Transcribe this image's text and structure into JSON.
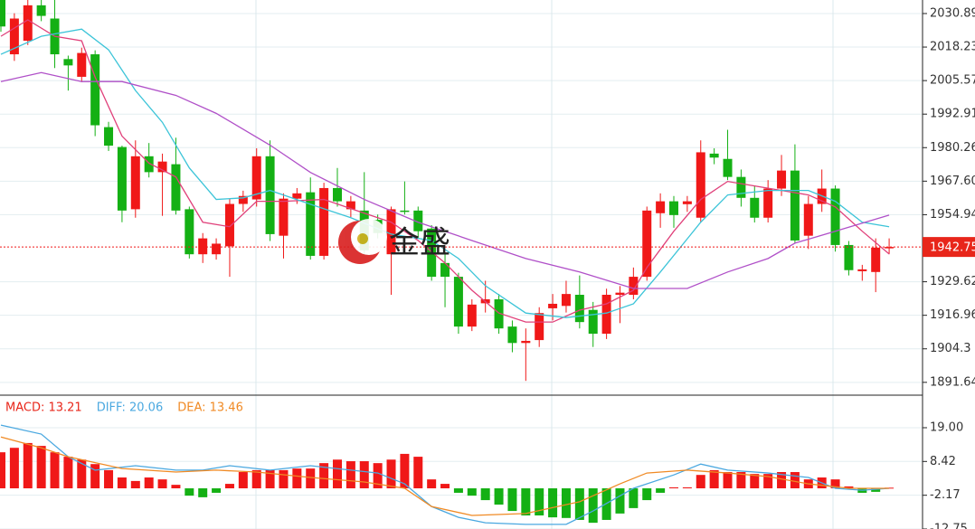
{
  "chart_data": [
    {
      "type": "candlestick",
      "up_color": "#f01818",
      "down_color": "#14b014",
      "ylim": [
        1886.8,
        2036
      ],
      "yticks": [
        2030.89,
        2018.23,
        2005.57,
        1992.91,
        1980.26,
        {
          "value": 1967.6,
          "label": "1967.60"
        },
        1954.94,
        1929.62,
        1916.96,
        1904.3,
        1891.64
      ],
      "grid": true,
      "last_price": 1942.75,
      "watermark": "金盛",
      "open": [
        2036,
        2015.5,
        2020.6,
        2034,
        2029,
        2013.7,
        2007,
        2015.5,
        1988,
        1980.5,
        1957,
        1977,
        1971,
        1974,
        1957,
        1940,
        1940,
        1943,
        1959,
        1960.7,
        1977,
        1947,
        1961,
        1963.4,
        1939.4,
        1965,
        1957,
        1956.5,
        1953,
        1940,
        1956.5,
        1956.5,
        1949.7,
        1936.7,
        1931.5,
        1912.7,
        1921.5,
        1923,
        1912.7,
        1906.5,
        1907.6,
        1919.6,
        1920.5,
        1924.7,
        1919,
        1910,
        1924.7,
        1924.7,
        1931.5,
        1955.5,
        1960,
        1958.9,
        1953.8,
        1978,
        1976,
        1969.2,
        1961.3,
        1953.8,
        1964.8,
        1971.6,
        1947,
        1959,
        1964.8,
        1943.5,
        1933.6,
        1933.3,
        1942.3
      ],
      "high": [
        2036,
        2031,
        2036,
        2036,
        2036,
        2015,
        2018,
        2017,
        1990,
        1981,
        1983,
        1982,
        1978,
        1984,
        1958,
        1948,
        1946,
        1961,
        1964,
        1980,
        1983,
        1963,
        1965,
        1969,
        1967,
        1972.6,
        1962,
        1971,
        1955,
        1958,
        1967.5,
        1958,
        1951,
        1940,
        1933,
        1923,
        1930,
        1925,
        1915,
        1912,
        1920,
        1925,
        1930,
        1932,
        1922,
        1927,
        1928,
        1935,
        1958,
        1963,
        1962,
        1962,
        1983,
        1980,
        1987,
        1972,
        1966,
        1968,
        1977.5,
        1981.5,
        1962,
        1972,
        1966,
        1945,
        1936,
        1946,
        1946
      ],
      "low": [
        2024,
        2013,
        2019,
        2028,
        2010.3,
        2001.8,
        2005,
        1984.6,
        1979,
        1952.1,
        1953.8,
        1969,
        1954.5,
        1955,
        1938.4,
        1936.7,
        1938,
        1931.5,
        1956,
        1958,
        1945,
        1938.4,
        1959,
        1938,
        1938,
        1958,
        1954,
        1940,
        1946,
        1924.7,
        1955,
        1946,
        1930,
        1920,
        1910,
        1911,
        1918,
        1910,
        1903,
        1892.2,
        1905,
        1915,
        1918,
        1912,
        1905,
        1908,
        1914,
        1923,
        1930,
        1950,
        1950,
        1956,
        1952,
        1974,
        1968,
        1958,
        1952,
        1952,
        1962,
        1944,
        1942,
        1956,
        1941,
        1932,
        1930,
        1925.7,
        1940
      ],
      "close": [
        2026,
        2029,
        2034,
        2030,
        2015.5,
        2011.3,
        2016,
        1988.7,
        1981,
        1956.5,
        1977,
        1971,
        1975,
        1956.5,
        1940,
        1946,
        1944,
        1959,
        1962,
        1977,
        1947.6,
        1961,
        1963,
        1939.4,
        1965,
        1960,
        1960,
        1941.5,
        1948,
        1957,
        1956.2,
        1948.7,
        1931.5,
        1931.5,
        1912.7,
        1921,
        1923,
        1912,
        1906.5,
        1907.3,
        1917.8,
        1921.3,
        1925,
        1914.4,
        1910,
        1924.7,
        1925.5,
        1931.5,
        1956.5,
        1960,
        1954.8,
        1960,
        1978.5,
        1976.5,
        1969.2,
        1961.3,
        1953.8,
        1964.8,
        1971.6,
        1945.2,
        1959,
        1964.8,
        1943.5,
        1934,
        1934.3,
        1942.5,
        1942.75
      ],
      "series": [
        {
          "color": "#e0407a",
          "x": [
            0,
            2,
            4,
            6,
            7,
            9,
            11,
            13,
            15,
            17,
            19,
            21,
            24,
            27,
            29,
            31,
            33,
            35,
            37,
            39,
            41,
            43,
            45,
            47,
            48,
            50,
            52,
            54,
            56,
            58,
            60,
            62,
            64,
            66
          ],
          "values": [
            2022.3,
            2028.5,
            2022.3,
            2020.6,
            2006.9,
            1984.6,
            1974.4,
            1969.2,
            1952.1,
            1950.4,
            1960,
            1960,
            1960.7,
            1955.5,
            1952.1,
            1945.2,
            1936.7,
            1926.4,
            1917.8,
            1914.4,
            1914.4,
            1918.9,
            1921.3,
            1926.4,
            1935,
            1948.7,
            1960.7,
            1967.5,
            1965.8,
            1964.1,
            1962.4,
            1957.9,
            1948.7,
            1940.1
          ]
        },
        {
          "color": "#3cc4d8",
          "x": [
            0,
            3,
            6,
            8,
            10,
            12,
            14,
            16,
            18,
            20,
            23,
            26,
            29,
            32,
            34,
            36,
            39,
            42,
            45,
            47,
            49,
            52,
            54,
            57,
            60,
            62,
            64,
            66
          ],
          "values": [
            2015.5,
            2022.3,
            2025,
            2017.2,
            2001.8,
            1989.8,
            1972.6,
            1960.7,
            1961.3,
            1964.1,
            1958.9,
            1953.8,
            1947.6,
            1945.2,
            1938.4,
            1928.1,
            1917.8,
            1916.1,
            1917.8,
            1921.3,
            1933.3,
            1952.1,
            1962.4,
            1964.1,
            1964.1,
            1960,
            1952.1,
            1950.4
          ]
        },
        {
          "color": "#b050c8",
          "x": [
            0,
            3,
            6,
            9,
            13,
            16,
            20,
            23,
            27,
            31,
            35,
            39,
            43,
            47,
            51,
            54,
            57,
            59,
            62,
            66
          ],
          "values": [
            2005.2,
            2008.6,
            2005.2,
            2005.2,
            2000,
            1993.2,
            1981.2,
            1970.9,
            1960.7,
            1952.1,
            1945.2,
            1938.4,
            1933.3,
            1927.1,
            1927.1,
            1933.3,
            1938.4,
            1944.2,
            1948.7,
            1954.8
          ]
        }
      ]
    },
    {
      "type": "macd",
      "ylim": [
        -12.75,
        29.2
      ],
      "yticks": [
        {
          "value": 19,
          "label": "19.00"
        },
        8.42,
        -2.17,
        -12.75
      ],
      "up_color": "#f01818",
      "down_color": "#14b014",
      "series": [
        {
          "name": "MACD: 13.21",
          "color": "#e8261a",
          "values": [
            11.3,
            12.7,
            14.2,
            13.3,
            11.3,
            9.9,
            9,
            7.6,
            5.7,
            3.4,
            2.3,
            3.4,
            2.8,
            1.1,
            -2.3,
            -2.8,
            -1.4,
            1.4,
            5.1,
            5.7,
            5.7,
            5.7,
            6.2,
            6.2,
            7.9,
            9,
            8.5,
            8.5,
            7.9,
            9,
            10.8,
            9.9,
            2.8,
            1.4,
            -1.4,
            -2.3,
            -3.7,
            -5.1,
            -7.1,
            -8.5,
            -8.5,
            -9.1,
            -9.3,
            -9.9,
            -10.8,
            -9.9,
            -7.9,
            -6.2,
            -3.7,
            -1.4,
            0.3,
            0.3,
            4.2,
            5.7,
            5.1,
            5.1,
            4.5,
            4.5,
            5.1,
            5.1,
            2.8,
            3.4,
            2.8,
            0.6,
            -1.4,
            -1.1,
            0.2
          ]
        },
        {
          "name": "DIFF: 20.06",
          "color": "#4aa8e0",
          "x": [
            0,
            3,
            5,
            7,
            10,
            13,
            15,
            17,
            20,
            23,
            26,
            28,
            30,
            32,
            34,
            36,
            39,
            42,
            44,
            47,
            50,
            52,
            54,
            57,
            60,
            62,
            64,
            66
          ],
          "values": [
            19.8,
            17,
            9.9,
            5.7,
            7.1,
            5.7,
            5.7,
            7.1,
            5.7,
            7.1,
            5.7,
            4.8,
            1.4,
            -5.7,
            -9.1,
            -10.8,
            -11.3,
            -11.3,
            -7.1,
            0,
            4.2,
            7.6,
            5.7,
            4.8,
            3.4,
            0,
            -0.6,
            0
          ]
        },
        {
          "name": "DEA: 13.46",
          "color": "#f08a24",
          "x": [
            0,
            3,
            5,
            9,
            13,
            16,
            19,
            23,
            27,
            30,
            32,
            35,
            39,
            43,
            46,
            48,
            51,
            54,
            57,
            60,
            63,
            66
          ],
          "values": [
            16.1,
            12.7,
            9.9,
            6.2,
            5.1,
            5.7,
            5.1,
            3.4,
            2,
            0,
            -5.7,
            -8.5,
            -7.9,
            -4.2,
            1.4,
            4.8,
            5.7,
            4.8,
            3.7,
            1.4,
            0,
            0
          ]
        }
      ]
    }
  ]
}
